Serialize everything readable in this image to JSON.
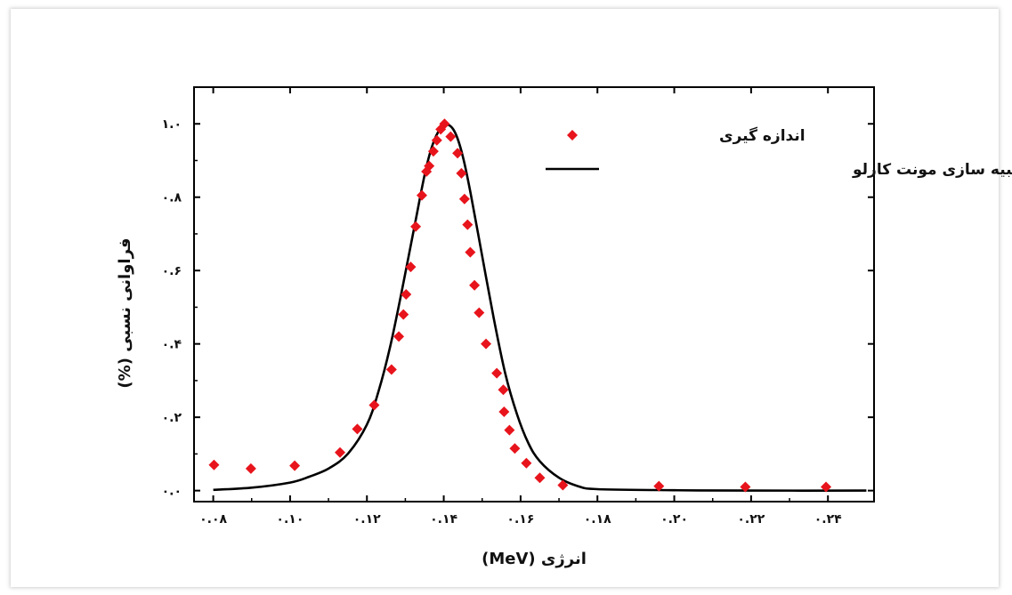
{
  "chart_data": {
    "type": "scatter",
    "title": "",
    "xlabel": "انرژی (MeV)",
    "ylabel": "فراوانی نسبی (%)",
    "xlim": [
      0.075,
      0.252
    ],
    "ylim": [
      -0.03,
      1.1
    ],
    "xticks": [
      0.08,
      0.1,
      0.12,
      0.14,
      0.16,
      0.18,
      0.2,
      0.22,
      0.24
    ],
    "xtick_labels": [
      "۰.۰۸",
      "۰.۱۰",
      "۰.۱۲",
      "۰.۱۴",
      "۰.۱۶",
      "۰.۱۸",
      "۰.۲۰",
      "۰.۲۲",
      "۰.۲۴"
    ],
    "yticks": [
      0.0,
      0.2,
      0.4,
      0.6,
      0.8,
      1.0
    ],
    "ytick_labels": [
      "۰.۰",
      "۰.۲",
      "۰.۴",
      "۰.۶",
      "۰.۸",
      "۱.۰"
    ],
    "legend_position": "top-right",
    "series": [
      {
        "name": "اندازه گیری",
        "kind": "markers",
        "marker": "diamond",
        "color": "#e8141c",
        "x": [
          0.0802,
          0.0898,
          0.1012,
          0.113,
          0.1175,
          0.1219,
          0.1264,
          0.1283,
          0.1295,
          0.1302,
          0.1314,
          0.1327,
          0.1343,
          0.1355,
          0.1362,
          0.1373,
          0.1382,
          0.1392,
          0.1402,
          0.1418,
          0.1436,
          0.1446,
          0.1454,
          0.1462,
          0.1469,
          0.148,
          0.1492,
          0.151,
          0.1538,
          0.1555,
          0.1557,
          0.1571,
          0.1585,
          0.1615,
          0.165,
          0.171,
          0.196,
          0.2185,
          0.2395
        ],
        "y": [
          0.07,
          0.06,
          0.068,
          0.104,
          0.168,
          0.233,
          0.33,
          0.42,
          0.48,
          0.535,
          0.61,
          0.72,
          0.805,
          0.87,
          0.885,
          0.925,
          0.955,
          0.985,
          1.0,
          0.965,
          0.92,
          0.865,
          0.795,
          0.725,
          0.65,
          0.56,
          0.485,
          0.4,
          0.32,
          0.275,
          0.215,
          0.165,
          0.115,
          0.075,
          0.035,
          0.015,
          0.012,
          0.01,
          0.01
        ]
      },
      {
        "name": "شبیه سازی مونت کارلو",
        "kind": "line",
        "color": "#000000",
        "x": [
          0.08,
          0.09,
          0.1,
          0.105,
          0.11,
          0.115,
          0.12,
          0.123,
          0.126,
          0.129,
          0.132,
          0.135,
          0.137,
          0.139,
          0.141,
          0.143,
          0.145,
          0.147,
          0.15,
          0.153,
          0.156,
          0.159,
          0.162,
          0.165,
          0.17,
          0.175,
          0.18,
          0.2,
          0.22,
          0.25
        ],
        "y": [
          0.002,
          0.008,
          0.022,
          0.038,
          0.06,
          0.1,
          0.18,
          0.27,
          0.39,
          0.54,
          0.7,
          0.86,
          0.94,
          0.985,
          0.998,
          0.975,
          0.91,
          0.81,
          0.64,
          0.47,
          0.32,
          0.21,
          0.13,
          0.08,
          0.035,
          0.012,
          0.004,
          0.001,
          0.0,
          0.0
        ]
      }
    ]
  }
}
